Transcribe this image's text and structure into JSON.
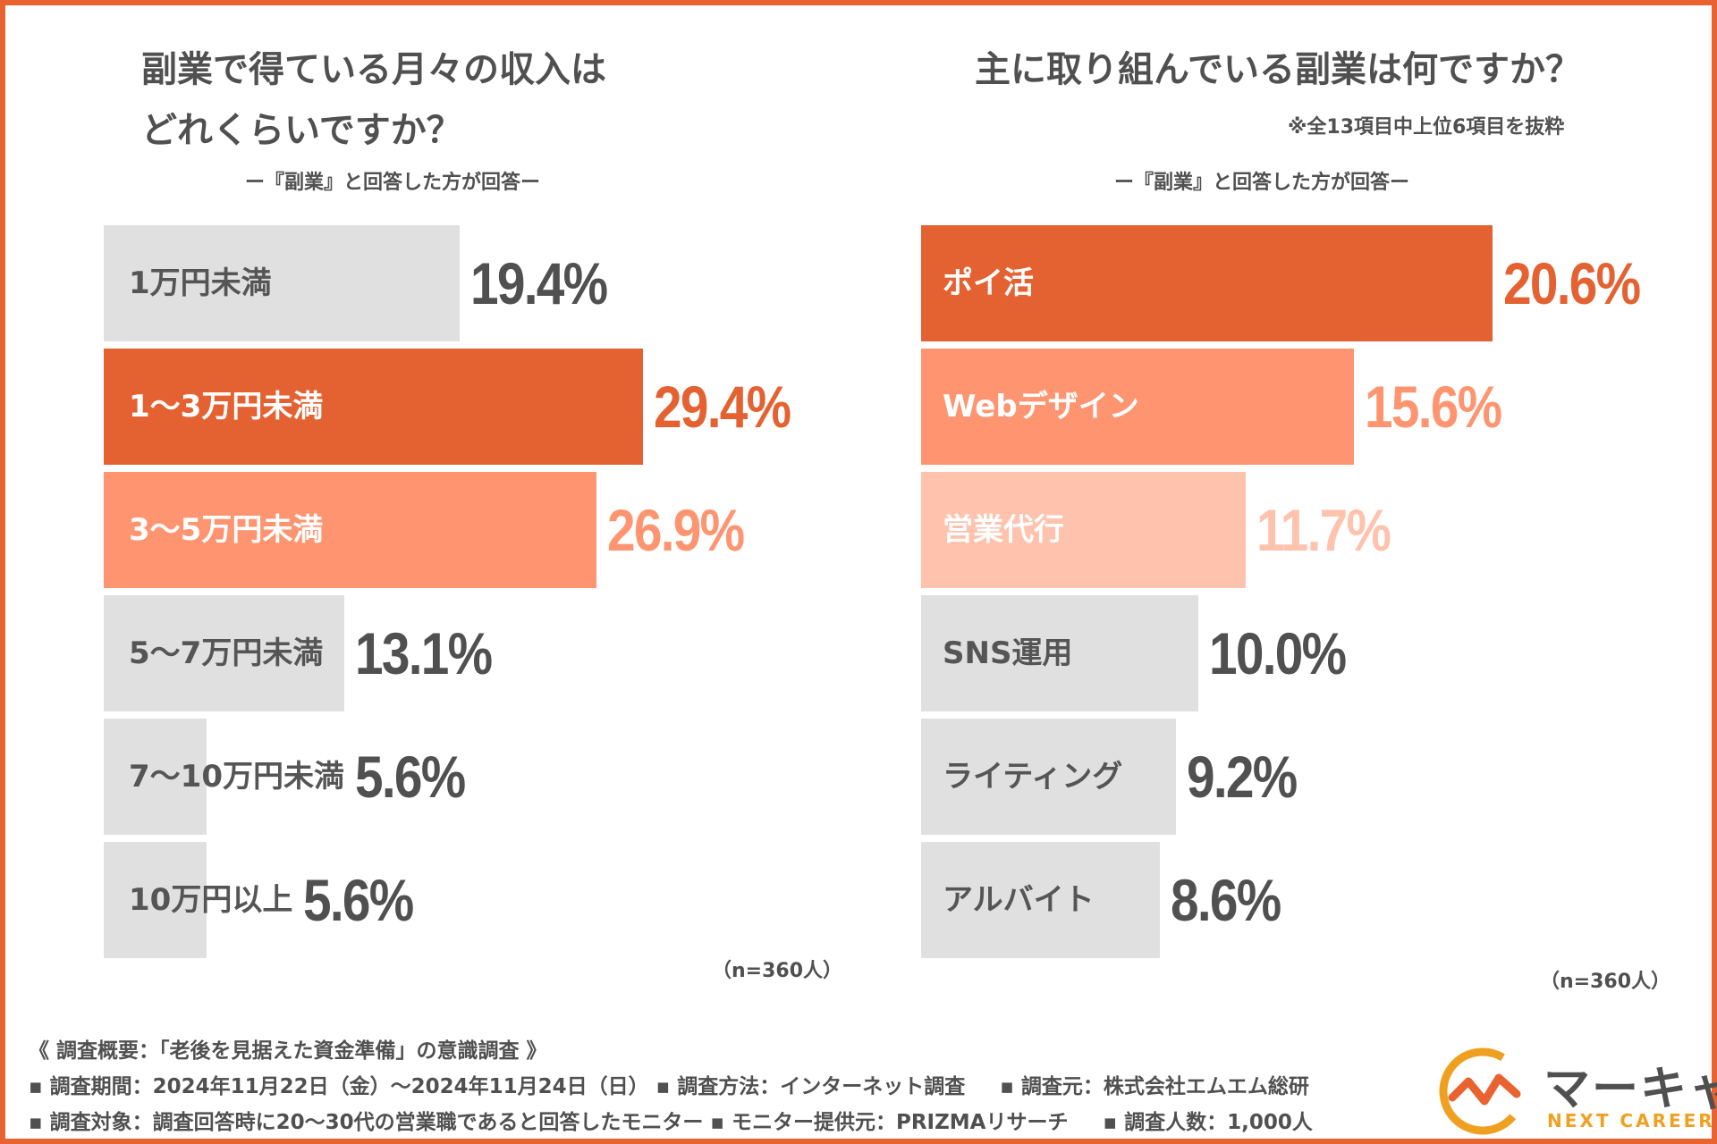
{
  "left": {
    "title_line1": "副業で得ている月々の収入は",
    "title_line2": "どれくらいですか？",
    "subtitle": "ー『副業』と回答した方が回答ー",
    "n_note": "（n=360人）"
  },
  "right": {
    "title": "主に取り組んでいる副業は何ですか？",
    "note": "※全13項目中上位6項目を抜粋",
    "subtitle": "ー『副業』と回答した方が回答ー",
    "n_note": "（n=360人）"
  },
  "chart_data": [
    {
      "type": "bar",
      "orientation": "horizontal",
      "title": "副業で得ている月々の収入はどれくらいですか？",
      "categories": [
        "1万円未満",
        "1〜3万円未満",
        "3〜5万円未満",
        "5〜7万円未満",
        "7〜10万円未満",
        "10万円以上"
      ],
      "values": [
        19.4,
        29.4,
        26.9,
        13.1,
        5.6,
        5.6
      ],
      "value_labels": [
        "19.4%",
        "29.4%",
        "26.9%",
        "13.1%",
        "5.6%",
        "5.6%"
      ],
      "colors": [
        "#e0e0e0",
        "#e46232",
        "#fe9570",
        "#e0e0e0",
        "#e0e0e0",
        "#e0e0e0"
      ],
      "label_colors": [
        "#555555",
        "#ffffff",
        "#ffffff",
        "#555555",
        "#555555",
        "#555555"
      ],
      "value_colors": [
        "#505050",
        "#e46232",
        "#fe9570",
        "#505050",
        "#505050",
        "#505050"
      ],
      "unit": "%",
      "xlim": [
        0,
        30
      ]
    },
    {
      "type": "bar",
      "orientation": "horizontal",
      "title": "主に取り組んでいる副業は何ですか？",
      "categories": [
        "ポイ活",
        "Webデザイン",
        "営業代行",
        "SNS運用",
        "ライティング",
        "アルバイト"
      ],
      "values": [
        20.6,
        15.6,
        11.7,
        10.0,
        9.2,
        8.6
      ],
      "value_labels": [
        "20.6%",
        "15.6%",
        "11.7%",
        "10.0%",
        "9.2%",
        "8.6%"
      ],
      "colors": [
        "#e46232",
        "#fe9570",
        "#ffc2ad",
        "#e0e0e0",
        "#e0e0e0",
        "#e0e0e0"
      ],
      "label_colors": [
        "#ffffff",
        "#ffffff",
        "#ffffff",
        "#555555",
        "#555555",
        "#555555"
      ],
      "value_colors": [
        "#e46232",
        "#fe9570",
        "#ffc2ad",
        "#505050",
        "#505050",
        "#505050"
      ],
      "unit": "%",
      "xlim": [
        0,
        21
      ]
    }
  ],
  "footer": {
    "line1": "《 調査概要：「老後を見据えた資金準備」の意識調査 》",
    "line2": "▪ 調査期間：2024年11月22日（金）〜2024年11月24日（日） ▪ 調査方法：インターネット調査 　 ▪ 調査元：株式会社エムエム総研",
    "line3": "▪ 調査対象：調査回答時に20〜30代の営業職であると回答したモニター ▪ モニター提供元：PRIZMAリサーチ 　 ▪ 調査人数：1,000人"
  },
  "logo": {
    "name": "マーキャリ",
    "tagline": "NEXT CAREER",
    "colors": {
      "orange": "#e8632f",
      "yellow": "#f0a020"
    }
  }
}
